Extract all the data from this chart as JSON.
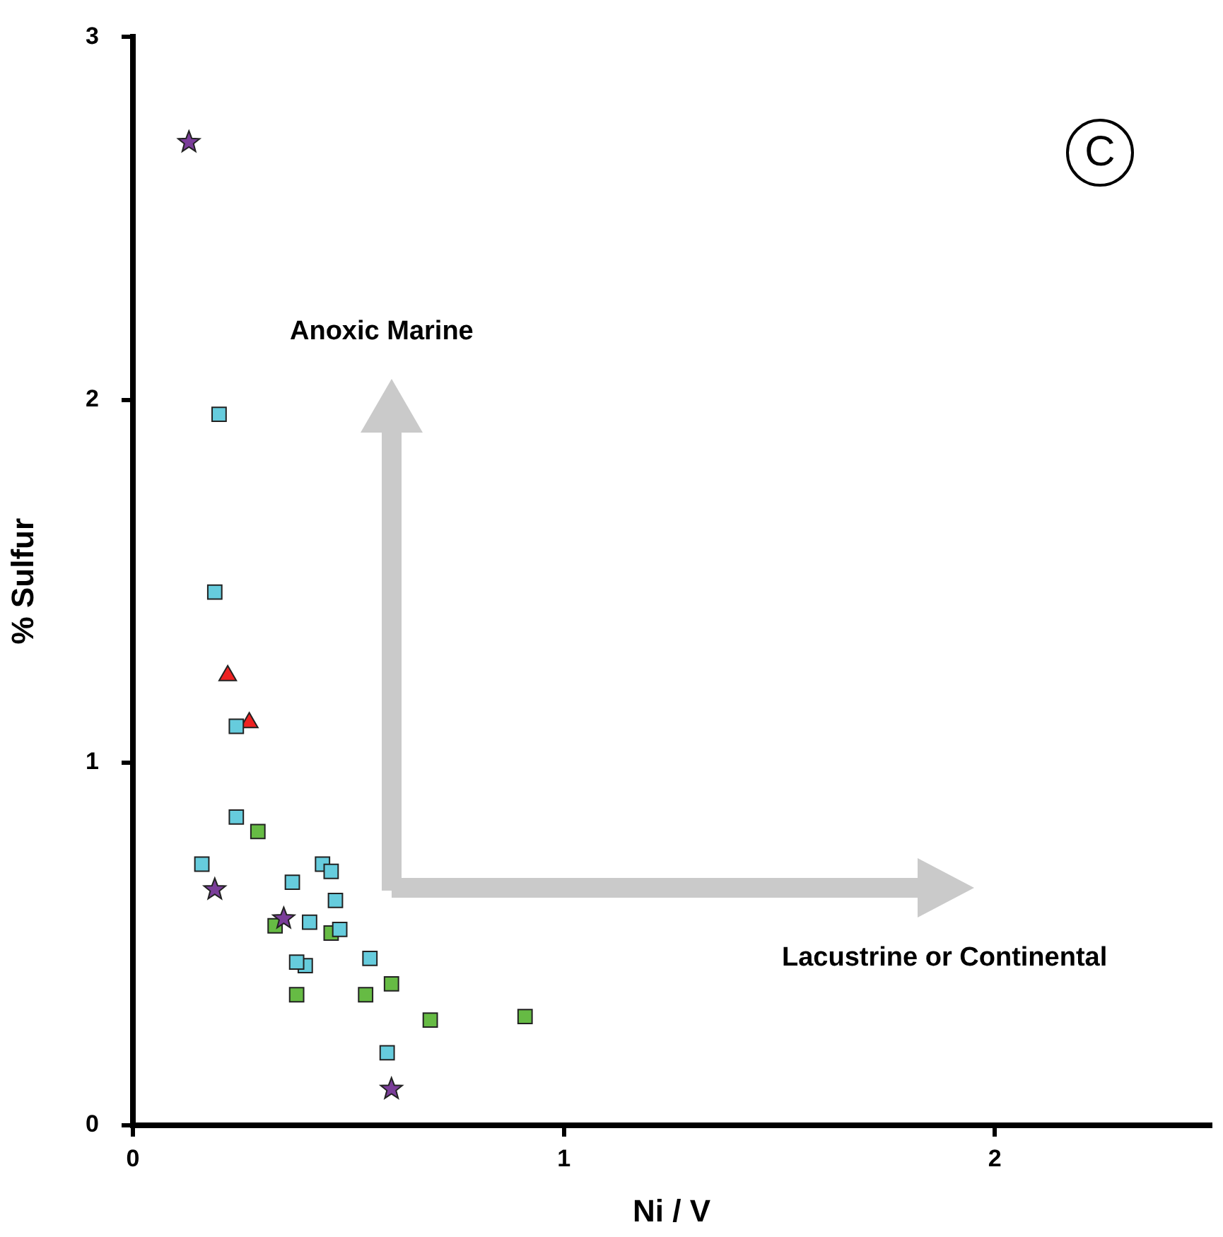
{
  "chart_data": {
    "type": "scatter",
    "xlabel": "Ni / V",
    "ylabel": "% Sulfur",
    "xlim": [
      0,
      2.5
    ],
    "xticks": [
      0,
      1,
      2
    ],
    "ylim": [
      0,
      3
    ],
    "yticks": [
      0,
      1,
      2,
      3
    ],
    "annotations": [
      "Anoxic Marine",
      "Lacustrine or Continental",
      "C"
    ],
    "series": [
      {
        "color": "#66ccdd",
        "marker": "square",
        "x": [
          0.2,
          0.19,
          0.24,
          0.24,
          0.16,
          0.44,
          0.46,
          0.37,
          0.47,
          0.41,
          0.48,
          0.55,
          0.4,
          0.38,
          0.59
        ],
        "values": [
          1.96,
          1.47,
          1.1,
          0.85,
          0.72,
          0.72,
          0.7,
          0.67,
          0.62,
          0.56,
          0.54,
          0.46,
          0.44,
          0.45,
          0.2
        ]
      },
      {
        "color": "#66bb44",
        "marker": "square",
        "x": [
          0.29,
          0.33,
          0.46,
          0.6,
          0.38,
          0.54,
          0.69,
          0.91
        ],
        "values": [
          0.81,
          0.55,
          0.53,
          0.39,
          0.36,
          0.36,
          0.29,
          0.3
        ]
      },
      {
        "color": "#ee2222",
        "marker": "triangle",
        "x": [
          0.22,
          0.27
        ],
        "values": [
          1.24,
          1.11
        ]
      },
      {
        "color": "#7a3d99",
        "marker": "star",
        "x": [
          0.13,
          0.19,
          0.35,
          0.6
        ],
        "values": [
          2.71,
          0.65,
          0.57,
          0.1
        ]
      }
    ]
  }
}
